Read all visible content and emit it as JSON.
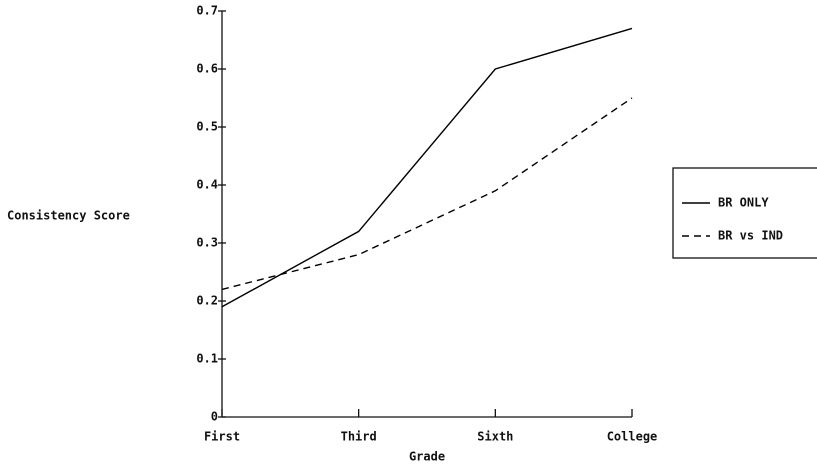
{
  "chart_data": {
    "type": "line",
    "x_label": "Grade",
    "y_label": "Consistency Score",
    "categories": [
      "First",
      "Third",
      "Sixth",
      "College"
    ],
    "series": [
      {
        "name": "BR ONLY",
        "color": "#000000",
        "dash": "solid",
        "values": [
          0.19,
          0.32,
          0.6,
          0.67
        ]
      },
      {
        "name": "BR vs IND",
        "color": "#000000",
        "dash": "dashed",
        "values": [
          0.22,
          0.28,
          0.39,
          0.55
        ]
      }
    ],
    "ylim": [
      0,
      0.7
    ],
    "yticks": [
      0,
      0.1,
      0.2,
      0.3,
      0.4,
      0.5,
      0.6,
      0.7
    ],
    "grid": false,
    "legend": "right"
  }
}
